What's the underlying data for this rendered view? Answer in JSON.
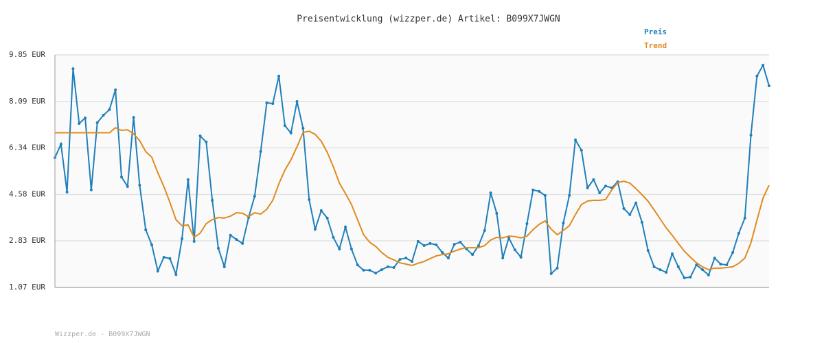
{
  "chart_data": {
    "type": "line",
    "title": "Preisentwicklung (wizzper.de) Artikel: B099X7JWGN",
    "footer": "Wizzper.de - B099X7JWGN",
    "ylim": [
      1.07,
      9.85
    ],
    "yticks": [
      {
        "value": 1.07,
        "label": "1.07 EUR"
      },
      {
        "value": 2.83,
        "label": "2.83 EUR"
      },
      {
        "value": 4.58,
        "label": "4.58 EUR"
      },
      {
        "value": 6.34,
        "label": "6.34 EUR"
      },
      {
        "value": 8.09,
        "label": "8.09 EUR"
      },
      {
        "value": 9.85,
        "label": "9.85 EUR"
      }
    ],
    "grid": true,
    "legend": "top-right",
    "series": [
      {
        "name": "Preis",
        "color": "#1f7fba",
        "markers": true,
        "values": [
          5.97,
          6.48,
          4.67,
          9.33,
          7.26,
          7.47,
          4.75,
          7.29,
          7.57,
          7.78,
          8.53,
          5.24,
          4.88,
          7.49,
          4.93,
          3.25,
          2.68,
          1.69,
          2.21,
          2.16,
          1.56,
          2.91,
          5.14,
          2.81,
          6.79,
          6.56,
          4.36,
          2.55,
          1.85,
          3.04,
          2.88,
          2.73,
          3.71,
          4.51,
          6.2,
          8.04,
          8.01,
          9.05,
          7.18,
          6.9,
          8.09,
          7.08,
          4.39,
          3.27,
          3.97,
          3.69,
          2.96,
          2.52,
          3.35,
          2.52,
          1.92,
          1.72,
          1.72,
          1.61,
          1.74,
          1.85,
          1.82,
          2.13,
          2.18,
          2.05,
          2.81,
          2.65,
          2.73,
          2.68,
          2.39,
          2.18,
          2.7,
          2.78,
          2.52,
          2.31,
          2.65,
          3.22,
          4.64,
          3.87,
          2.18,
          2.94,
          2.49,
          2.21,
          3.48,
          4.75,
          4.7,
          4.54,
          1.59,
          1.8,
          3.5,
          4.54,
          6.64,
          6.25,
          4.83,
          5.14,
          4.64,
          4.9,
          4.83,
          5.06,
          4.05,
          3.82,
          4.26,
          3.53,
          2.47,
          1.85,
          1.74,
          1.64,
          2.34,
          1.85,
          1.43,
          1.46,
          1.92,
          1.74,
          1.54,
          2.18,
          1.95,
          1.92,
          2.39,
          3.12,
          3.69,
          6.82,
          9.05,
          9.46,
          8.68
        ]
      },
      {
        "name": "Trend",
        "color": "#e08a1e",
        "markers": false,
        "values": [
          6.91,
          6.91,
          6.91,
          6.91,
          6.91,
          6.91,
          6.91,
          6.91,
          6.91,
          6.91,
          7.1,
          7.0,
          7.02,
          6.87,
          6.61,
          6.2,
          5.99,
          5.4,
          4.88,
          4.28,
          3.63,
          3.4,
          3.43,
          2.96,
          3.12,
          3.48,
          3.63,
          3.71,
          3.69,
          3.76,
          3.89,
          3.87,
          3.74,
          3.89,
          3.84,
          4.02,
          4.36,
          4.98,
          5.5,
          5.89,
          6.38,
          6.92,
          6.97,
          6.85,
          6.59,
          6.17,
          5.63,
          5.01,
          4.62,
          4.2,
          3.63,
          3.06,
          2.78,
          2.62,
          2.39,
          2.21,
          2.11,
          2.0,
          1.95,
          1.9,
          1.98,
          2.05,
          2.16,
          2.26,
          2.31,
          2.34,
          2.44,
          2.52,
          2.57,
          2.57,
          2.57,
          2.65,
          2.86,
          2.96,
          2.94,
          3.01,
          2.99,
          2.94,
          3.01,
          3.25,
          3.45,
          3.58,
          3.27,
          3.06,
          3.22,
          3.4,
          3.82,
          4.2,
          4.33,
          4.36,
          4.36,
          4.39,
          4.75,
          5.03,
          5.08,
          5.01,
          4.8,
          4.57,
          4.33,
          4.0,
          3.66,
          3.32,
          3.04,
          2.73,
          2.44,
          2.21,
          2.0,
          1.85,
          1.74,
          1.8,
          1.8,
          1.82,
          1.85,
          1.98,
          2.18,
          2.75,
          3.61,
          4.44,
          4.93
        ]
      }
    ]
  }
}
